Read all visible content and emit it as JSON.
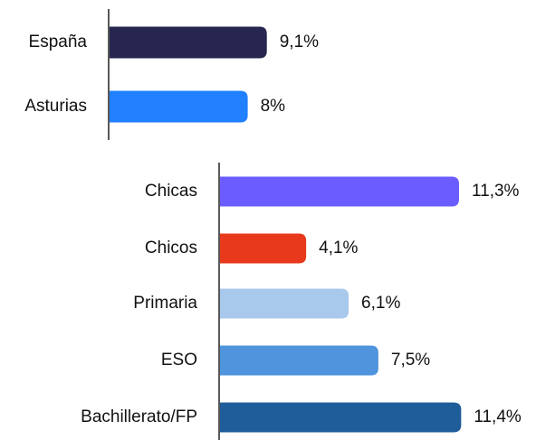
{
  "chart_data": [
    {
      "type": "bar",
      "orientation": "horizontal",
      "categories": [
        "España",
        "Asturias"
      ],
      "values": [
        9.1,
        8
      ],
      "value_labels": [
        "9,1%",
        "8%"
      ],
      "colors": [
        "#262650",
        "#2080ff"
      ]
    },
    {
      "type": "bar",
      "orientation": "horizontal",
      "categories": [
        "Chicas",
        "Chicos",
        "Primaria",
        "ESO",
        "Bachillerato/FP"
      ],
      "values": [
        11.3,
        4.1,
        6.1,
        7.5,
        11.4
      ],
      "value_labels": [
        "11,3%",
        "4,1%",
        "6,1%",
        "7,5%",
        "11,4%"
      ],
      "colors": [
        "#6a5cff",
        "#e8391c",
        "#a8c8ec",
        "#4f94dc",
        "#1f5c9a"
      ]
    }
  ]
}
